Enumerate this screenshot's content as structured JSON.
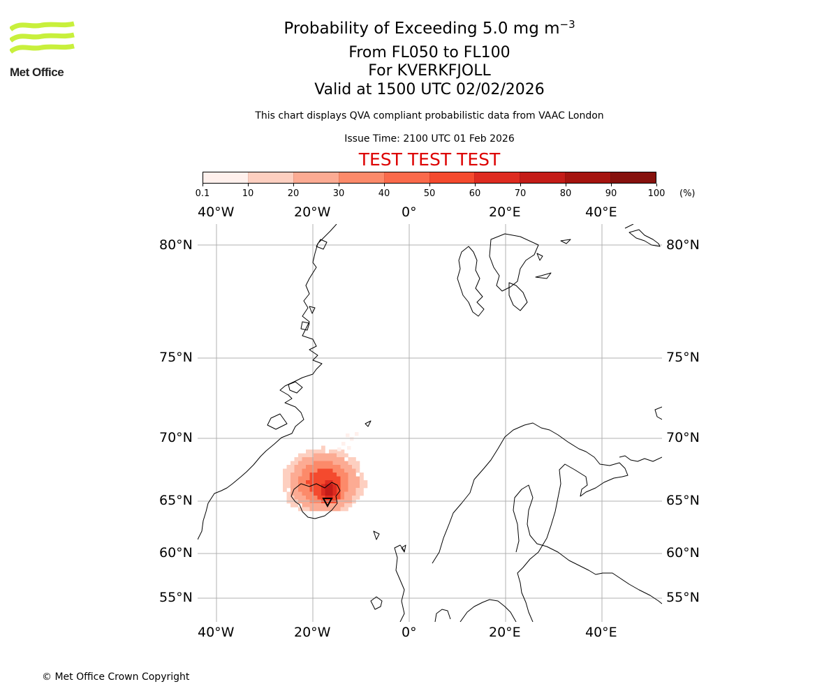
{
  "logo": {
    "text": "Met Office",
    "brand_color": "#c8f03c"
  },
  "title": {
    "line1_prefix": "Probability of Exceeding 5.0 mg m",
    "line1_exponent": "−3",
    "line2": "From FL050 to FL100",
    "line3": "For KVERKFJOLL",
    "line4": "Valid at 1500 UTC 02/02/2026"
  },
  "description": "This chart displays QVA compliant probabilistic data from VAAC London",
  "issue_time": "Issue Time: 2100 UTC 01 Feb 2026",
  "test_banner": "TEST TEST TEST",
  "colorbar": {
    "ticks": [
      "0.1",
      "10",
      "20",
      "30",
      "40",
      "50",
      "60",
      "70",
      "80",
      "90",
      "100"
    ],
    "unit": "(%)",
    "colors": [
      "#fff0ec",
      "#fdcfc0",
      "#fcab93",
      "#fc8a6a",
      "#fa6a4b",
      "#f44a2e",
      "#de2b20",
      "#c41c18",
      "#a5140f",
      "#86110d",
      "#67110b"
    ]
  },
  "map": {
    "lon_labels": [
      "40°W",
      "20°W",
      "0°",
      "20°E",
      "40°E"
    ],
    "lat_labels": [
      "80°N",
      "75°N",
      "70°N",
      "65°N",
      "60°N",
      "55°N"
    ]
  },
  "copyright": "© Met Office Crown Copyright"
}
